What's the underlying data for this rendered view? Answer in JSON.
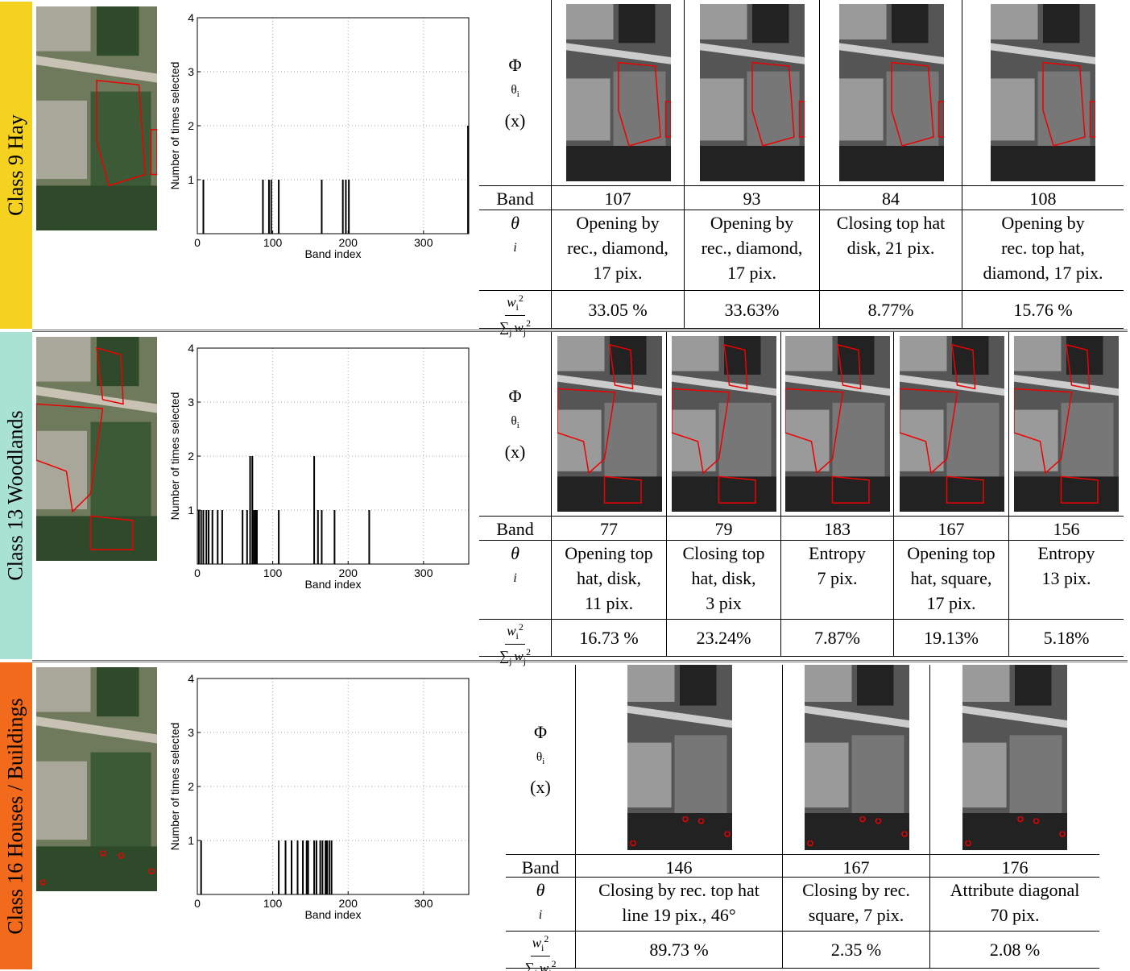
{
  "row_headers": {
    "image": {
      "symbol": "Φ",
      "sub": "θ",
      "subsub": "i",
      "arg": "(x)"
    },
    "band": "Band",
    "theta": {
      "symbol": "θ",
      "sub": "i"
    },
    "weight": {
      "num": {
        "symbol": "w",
        "sub": "i",
        "sup": "2"
      },
      "den": {
        "op": "∑",
        "opsub": "j",
        "symbol": "w",
        "sub": "j",
        "sup": "2"
      }
    }
  },
  "rows": [
    {
      "label": "Class 9 Hay",
      "color": "#f5d21f",
      "columns": [
        {
          "band": "107",
          "theta": [
            "Opening by",
            "rec., diamond,",
            "17 pix."
          ],
          "weight": "33.05 %"
        },
        {
          "band": "93",
          "theta": [
            "Opening by",
            "rec., diamond,",
            "17 pix."
          ],
          "weight": "33.63%"
        },
        {
          "band": "84",
          "theta": [
            "Closing top hat",
            "disk, 21 pix."
          ],
          "weight": "8.77%"
        },
        {
          "band": "108",
          "theta": [
            "Opening by",
            "rec. top hat,",
            "diamond, 17 pix."
          ],
          "weight": "15.76 %"
        }
      ]
    },
    {
      "label": "Class 13 Woodlands",
      "color": "#a9e2d3",
      "columns": [
        {
          "band": "77",
          "theta": [
            "Opening top",
            "hat, disk,",
            "11 pix."
          ],
          "weight": "16.73 %"
        },
        {
          "band": "79",
          "theta": [
            "Closing top",
            "hat, disk,",
            "3 pix"
          ],
          "weight": "23.24%"
        },
        {
          "band": "183",
          "theta": [
            "Entropy",
            "7 pix."
          ],
          "weight": "7.87%"
        },
        {
          "band": "167",
          "theta": [
            "Opening top",
            "hat, square,",
            "17 pix."
          ],
          "weight": "19.13%"
        },
        {
          "band": "156",
          "theta": [
            "Entropy",
            "13 pix."
          ],
          "weight": "5.18%"
        }
      ]
    },
    {
      "label": "Class 16 Houses / Buildings",
      "color": "#f26a1b",
      "columns": [
        {
          "band": "146",
          "theta": [
            "Closing by rec. top hat",
            "line 19 pix., 46°"
          ],
          "weight": "89.73 %"
        },
        {
          "band": "167",
          "theta": [
            "Closing by rec.",
            "square, 7 pix."
          ],
          "weight": "2.35 %"
        },
        {
          "band": "176",
          "theta": [
            "Attribute diagonal",
            "70 pix."
          ],
          "weight": "2.08 %"
        }
      ]
    }
  ],
  "chart_data": [
    {
      "type": "bar",
      "ylabel": "Number of times selected",
      "xlabel": "Band index",
      "color": "#000000",
      "grid": true,
      "xlim": [
        0,
        360
      ],
      "ylim": [
        0,
        4
      ],
      "xticks": [
        0,
        100,
        200,
        300
      ],
      "yticks": [
        1,
        2,
        3,
        4
      ],
      "x": [
        8,
        87,
        95,
        98,
        108,
        165,
        193,
        197,
        201,
        359
      ],
      "values": [
        1,
        1,
        1,
        1,
        1,
        1,
        1,
        1,
        1,
        2
      ]
    },
    {
      "type": "bar",
      "ylabel": "Number of times selected",
      "xlabel": "Band index",
      "color": "#000000",
      "grid": true,
      "xlim": [
        0,
        360
      ],
      "ylim": [
        0,
        4
      ],
      "xticks": [
        0,
        100,
        200,
        300
      ],
      "yticks": [
        1,
        2,
        3,
        4
      ],
      "x": [
        2,
        5,
        8,
        12,
        15,
        20,
        27,
        33,
        60,
        66,
        70,
        73,
        75,
        77,
        79,
        108,
        155,
        160,
        165,
        182,
        228
      ],
      "values": [
        1,
        1,
        1,
        1,
        1,
        1,
        1,
        1,
        1,
        1,
        2,
        2,
        1,
        1,
        1,
        1,
        2,
        1,
        1,
        1,
        1
      ]
    },
    {
      "type": "bar",
      "ylabel": "Number of times selected",
      "xlabel": "Band index",
      "color": "#000000",
      "grid": true,
      "xlim": [
        0,
        360
      ],
      "ylim": [
        0,
        4
      ],
      "xticks": [
        0,
        100,
        200,
        300
      ],
      "yticks": [
        1,
        2,
        3,
        4
      ],
      "x": [
        5,
        108,
        117,
        125,
        133,
        140,
        145,
        147,
        155,
        158,
        163,
        166,
        170,
        172,
        175,
        178
      ],
      "values": [
        1,
        1,
        1,
        1,
        1,
        1,
        1,
        1,
        1,
        1,
        1,
        1,
        1,
        1,
        1,
        1
      ]
    }
  ]
}
